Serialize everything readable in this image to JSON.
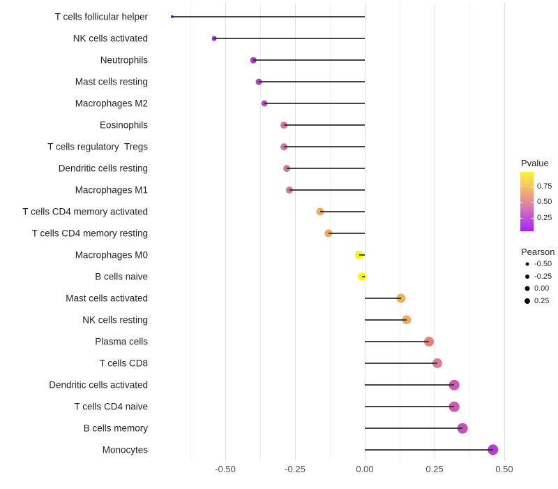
{
  "chart_data": {
    "type": "scatter",
    "variant": "lollipop",
    "title": "",
    "xlabel": "",
    "ylabel": "",
    "grid": "vertical-only",
    "xlim": [
      -0.753,
      0.52
    ],
    "x_tick_labels": [
      "-0.50",
      "-0.25",
      "0.00",
      "0.25",
      "0.50"
    ],
    "x_tick_values": [
      -0.5,
      -0.25,
      0,
      0.25,
      0.5
    ],
    "x_minor_tick_values": [
      -0.625,
      -0.375,
      -0.125,
      0.125,
      0.375
    ],
    "points": [
      {
        "label": "T cells follicular helper",
        "pearson": -0.69,
        "color": "#8111AE"
      },
      {
        "label": "NK cells activated",
        "pearson": -0.54,
        "color": "#992AC6"
      },
      {
        "label": "Neutrophils",
        "pearson": -0.4,
        "color": "#AC40C0"
      },
      {
        "label": "Mast cells resting",
        "pearson": -0.38,
        "color": "#B046BC"
      },
      {
        "label": "Macrophages M2",
        "pearson": -0.36,
        "color": "#B44CC0"
      },
      {
        "label": "Eosinophils",
        "pearson": -0.29,
        "color": "#D073A4"
      },
      {
        "label": "T cells regulatory  Tregs",
        "pearson": -0.29,
        "color": "#D073A4"
      },
      {
        "label": "Dendritic cells resting",
        "pearson": -0.28,
        "color": "#D075A2"
      },
      {
        "label": "Macrophages M1",
        "pearson": -0.27,
        "color": "#D2789E"
      },
      {
        "label": "T cells CD4 memory activated",
        "pearson": -0.16,
        "color": "#ECAB61"
      },
      {
        "label": "T cells CD4 memory resting",
        "pearson": -0.13,
        "color": "#EBA860"
      },
      {
        "label": "Macrophages M0",
        "pearson": -0.02,
        "color": "#F6F70B"
      },
      {
        "label": "B cells naive",
        "pearson": -0.01,
        "color": "#FBFB05"
      },
      {
        "label": "Mast cells activated",
        "pearson": 0.13,
        "color": "#EEB15A"
      },
      {
        "label": "NK cells resting",
        "pearson": 0.15,
        "color": "#ECAD5E"
      },
      {
        "label": "Plasma cells",
        "pearson": 0.23,
        "color": "#E18576"
      },
      {
        "label": "T cells CD8",
        "pearson": 0.26,
        "color": "#DC7E98"
      },
      {
        "label": "Dendritic cells activated",
        "pearson": 0.32,
        "color": "#CC5BB3"
      },
      {
        "label": "T cells CD4 naive",
        "pearson": 0.32,
        "color": "#CB5BB1"
      },
      {
        "label": "B cells memory",
        "pearson": 0.35,
        "color": "#C750B8"
      },
      {
        "label": "Monocytes",
        "pearson": 0.46,
        "color": "#BA3CD4"
      }
    ],
    "legend_position": "right",
    "pvalue_legend": {
      "title": "Pvalue",
      "tick_labels": [
        "0.75",
        "0.50",
        "0.25"
      ],
      "tick_values": [
        0.75,
        0.5,
        0.25
      ],
      "bar_domain": [
        0.03,
        0.99
      ],
      "gradient_top_to_bottom": [
        "#F8F13F",
        "#F5CE5B",
        "#EBA183",
        "#D878B2",
        "#BE4CE0",
        "#A326F2"
      ]
    },
    "pearson_legend": {
      "title": "Pearson",
      "entries": [
        {
          "label": "-0.50",
          "value": -0.5
        },
        {
          "label": "-0.25",
          "value": -0.25
        },
        {
          "label": "0.00",
          "value": 0.0
        },
        {
          "label": "0.25",
          "value": 0.25
        }
      ]
    }
  },
  "colors": {
    "background": "#ffffff",
    "stick": "#2a2a2a",
    "major_grid": "#e2e2e2",
    "minor_grid": "#f1f1f1",
    "axis_text": "#4d4d4d",
    "category_text": "#1f1f1f",
    "legend_dot": "#0d0d0d"
  }
}
